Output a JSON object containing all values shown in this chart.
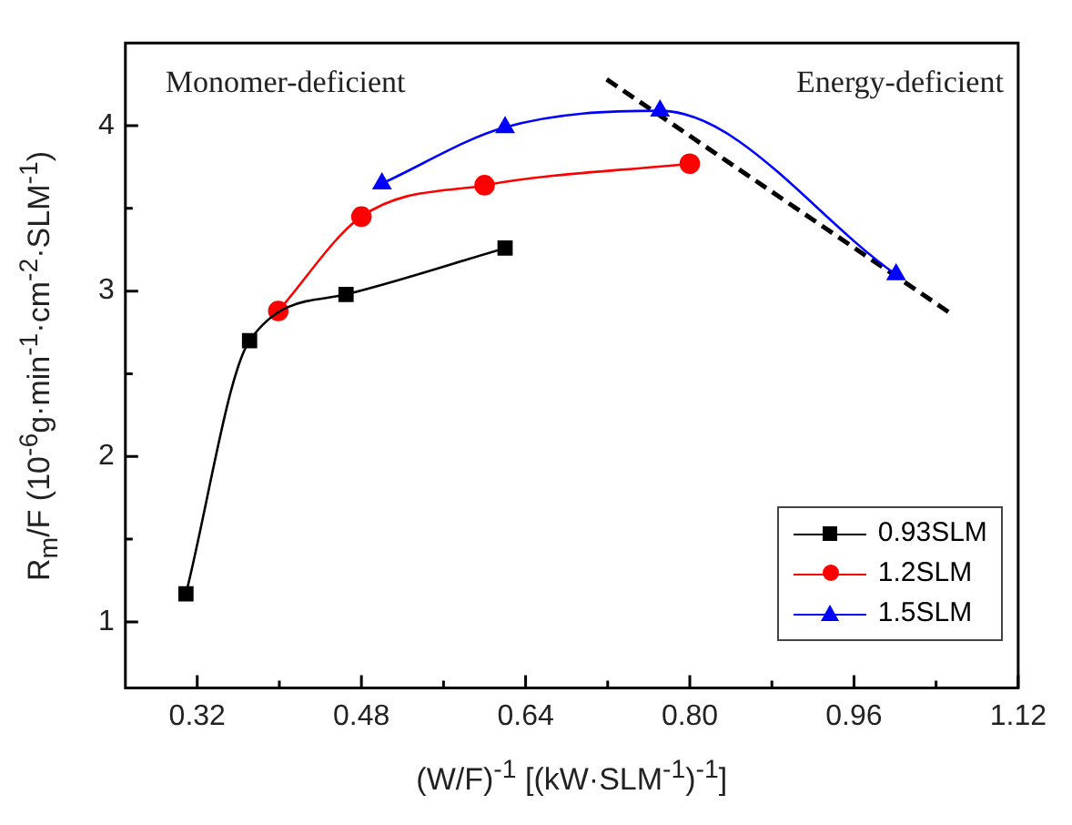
{
  "chart_data": {
    "type": "line",
    "xlabel": "(W/F)$^{-1}$ [(kW·SLM$^{-1}$)$^{-1}$]",
    "ylabel": "R$_{m}$/F (10$^{-6}$g·min$^{-1}$·cm$^{-2}$·SLM$^{-1}$)",
    "annotations": [
      "Monomer-deficient",
      "Energy-deficient"
    ],
    "xlim": [
      0.25,
      1.12
    ],
    "ylim": [
      0.6,
      4.5
    ],
    "xticks": [
      0.32,
      {
        "value": 0.4,
        "label": null
      },
      0.48,
      {
        "value": 0.56,
        "label": null
      },
      0.64,
      {
        "value": 0.72,
        "label": null
      },
      {
        "value": 0.8,
        "label": "0.80"
      },
      {
        "value": 0.88,
        "label": null
      },
      0.96,
      {
        "value": 1.04,
        "label": null
      },
      1.12
    ],
    "yticks": [
      1,
      {
        "value": 1.5,
        "label": null
      },
      2,
      {
        "value": 2.5,
        "label": null
      },
      3,
      {
        "value": 3.5,
        "label": null
      },
      4
    ],
    "grid": false,
    "legend": "bottom right",
    "series": [
      {
        "name": "0.93SLM",
        "color": "#000000",
        "marker": "square",
        "x": [
          0.309,
          0.371,
          0.465,
          0.62
        ],
        "values": [
          1.17,
          2.7,
          2.98,
          3.26
        ]
      },
      {
        "name": "1.2SLM",
        "color": "#ff0000",
        "marker": "circle",
        "x": [
          0.399,
          0.48,
          0.6,
          0.8
        ],
        "values": [
          2.88,
          3.45,
          3.64,
          3.77
        ]
      },
      {
        "name": "1.5SLM",
        "color": "#0000ff",
        "marker": "triangle",
        "x": [
          0.5,
          0.62,
          0.771,
          1.001
        ],
        "values": [
          3.65,
          3.99,
          4.09,
          3.1
        ]
      },
      {
        "color": "#000000",
        "marker": "none",
        "line_style": "dashed",
        "x": [
          0.719,
          1.053
        ],
        "values": [
          4.28,
          2.87
        ]
      }
    ]
  }
}
